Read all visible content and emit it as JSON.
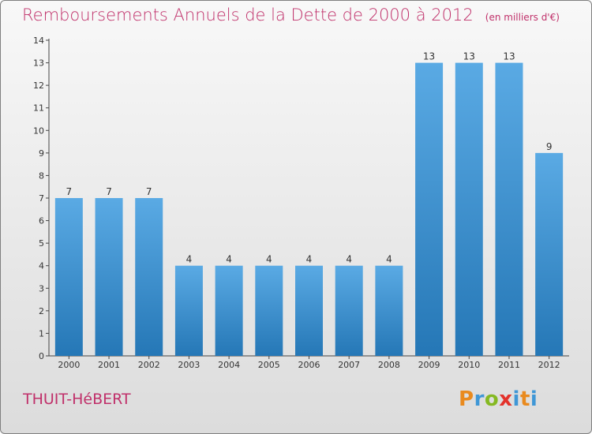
{
  "chart_data": {
    "type": "bar",
    "title": "Remboursements Annuels de la Dette de 2000 à 2012",
    "unit_label": "(en milliers d'€)",
    "categories": [
      "2000",
      "2001",
      "2002",
      "2003",
      "2004",
      "2005",
      "2006",
      "2007",
      "2008",
      "2009",
      "2010",
      "2011",
      "2012"
    ],
    "values": [
      7,
      7,
      7,
      4,
      4,
      4,
      4,
      4,
      4,
      13,
      13,
      13,
      9
    ],
    "value_labels": [
      "7",
      "7",
      "7",
      "4",
      "4",
      "4",
      "4",
      "4",
      "4",
      "13",
      "13",
      "13",
      "9"
    ],
    "y_ticks": [
      "0",
      "1",
      "2",
      "3",
      "4",
      "5",
      "6",
      "7",
      "8",
      "9",
      "10",
      "11",
      "12",
      "13",
      "14"
    ],
    "ylim": [
      0,
      14
    ],
    "bar_color": "#3a94d8",
    "grid": false
  },
  "footer": {
    "commune": "THUIT-HéBERT",
    "logo": {
      "p": "P",
      "r": "r",
      "o": "o",
      "x": "x",
      "i": "i",
      "t": "t",
      "i2": "i"
    }
  },
  "colors": {
    "title": "#c0306a",
    "bar_top": "#5aaae4",
    "bar_bottom": "#2577b6"
  }
}
